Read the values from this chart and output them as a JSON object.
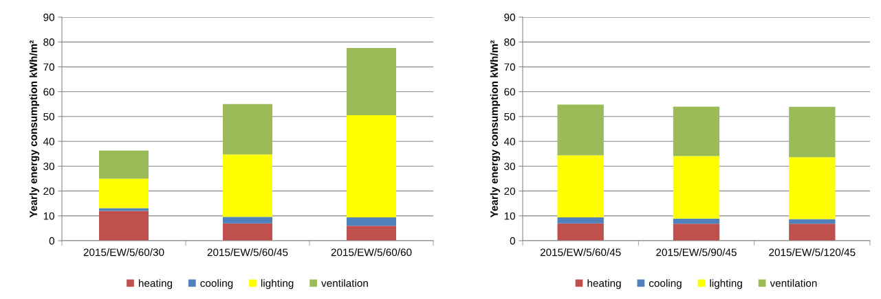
{
  "chart_data": [
    {
      "type": "bar",
      "stacked": true,
      "ylabel": "Yearly energy consumption kWh/m²",
      "categories": [
        "2015/EW/5/60/30",
        "2015/EW/5/60/45",
        "2015/EW/5/60/60"
      ],
      "ylim": [
        0,
        90
      ],
      "yticks": [
        0,
        10,
        20,
        30,
        40,
        50,
        60,
        70,
        80,
        90
      ],
      "grid": "y",
      "legend": "bottom",
      "series": [
        {
          "name": "heating",
          "color": "#c0504d",
          "values": [
            12.0,
            7.0,
            6.0
          ]
        },
        {
          "name": "cooling",
          "color": "#4f81bd",
          "values": [
            1.1,
            2.6,
            3.4
          ]
        },
        {
          "name": "lighting",
          "color": "#ffff00",
          "values": [
            11.9,
            25.1,
            41.1
          ]
        },
        {
          "name": "ventilation",
          "color": "#9bbb59",
          "values": [
            11.3,
            20.3,
            27.1
          ]
        }
      ]
    },
    {
      "type": "bar",
      "stacked": true,
      "ylabel": "Yearly energy consumption kWh/m²",
      "categories": [
        "2015/EW/5/60/45",
        "2015/EW/5/90/45",
        "2015/EW/5/120/45"
      ],
      "ylim": [
        0,
        90
      ],
      "yticks": [
        0,
        10,
        20,
        30,
        40,
        50,
        60,
        70,
        80,
        90
      ],
      "grid": "y",
      "legend": "bottom",
      "series": [
        {
          "name": "heating",
          "color": "#c0504d",
          "values": [
            7.0,
            6.8,
            6.8
          ]
        },
        {
          "name": "cooling",
          "color": "#4f81bd",
          "values": [
            2.4,
            2.1,
            1.9
          ]
        },
        {
          "name": "lighting",
          "color": "#ffff00",
          "values": [
            25.0,
            25.2,
            24.9
          ]
        },
        {
          "name": "ventilation",
          "color": "#9bbb59",
          "values": [
            20.4,
            19.9,
            20.3
          ]
        }
      ]
    }
  ]
}
